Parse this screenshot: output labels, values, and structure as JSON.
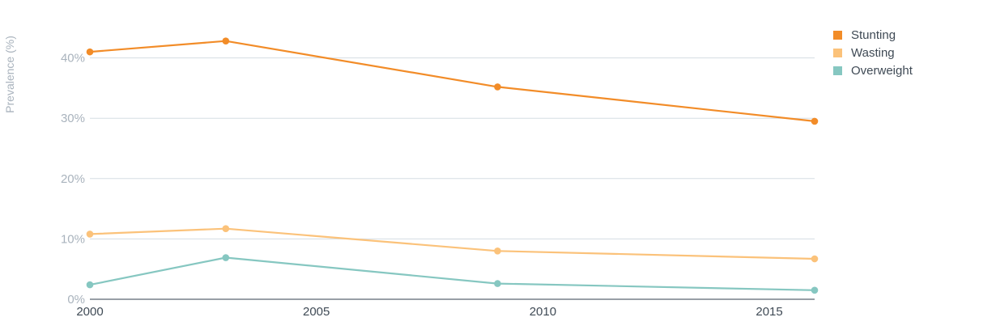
{
  "chart_data": {
    "type": "line",
    "title": "",
    "xlabel": "",
    "ylabel": "Prevalence (%)",
    "x": [
      2000,
      2003,
      2009,
      2016
    ],
    "xticks": [
      "2000",
      "2005",
      "2010",
      "2015"
    ],
    "xlim": [
      2000,
      2016
    ],
    "yticks": [
      "0%",
      "10%",
      "20%",
      "30%",
      "40%"
    ],
    "ylim": [
      0,
      45
    ],
    "grid": true,
    "legend_position": "top-right",
    "series": [
      {
        "name": "Stunting",
        "color": "#f28c28",
        "values": [
          41.0,
          42.8,
          35.2,
          29.5
        ]
      },
      {
        "name": "Wasting",
        "color": "#fbc27a",
        "values": [
          10.8,
          11.7,
          8.0,
          6.7
        ]
      },
      {
        "name": "Overweight",
        "color": "#86c7c1",
        "values": [
          2.4,
          6.9,
          2.6,
          1.5
        ]
      }
    ]
  }
}
